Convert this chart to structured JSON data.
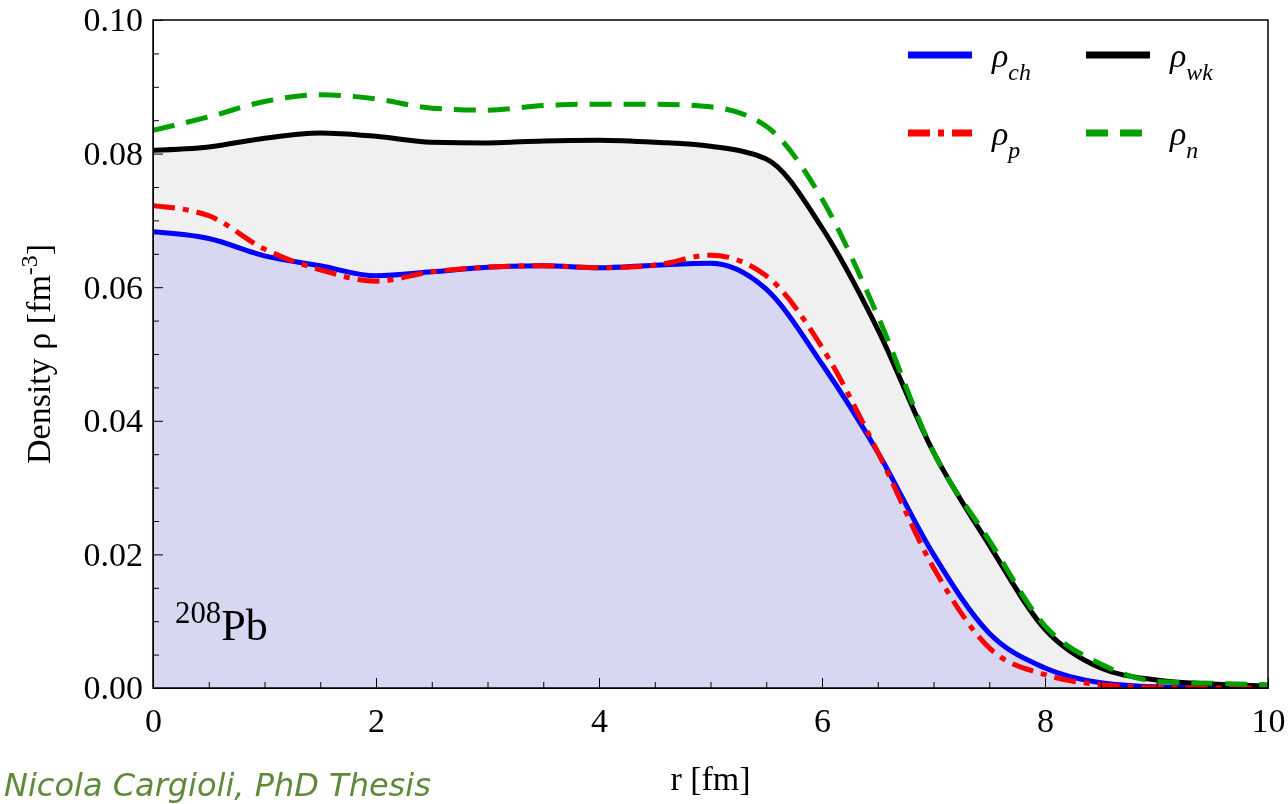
{
  "chart_data": {
    "type": "line",
    "xlabel": "r [fm]",
    "ylabel": "Density ρ [fm$^{-3}$]",
    "xlim": [
      0,
      10
    ],
    "ylim": [
      0,
      0.1
    ],
    "xticks": [
      {
        "value": 0,
        "label": "0"
      },
      {
        "value": 0.5,
        "label": null
      },
      {
        "value": 1,
        "label": null
      },
      {
        "value": 1.5,
        "label": null
      },
      {
        "value": 2,
        "label": "2"
      },
      {
        "value": 2.5,
        "label": null
      },
      {
        "value": 3,
        "label": null
      },
      {
        "value": 3.5,
        "label": null
      },
      {
        "value": 4,
        "label": "4"
      },
      {
        "value": 4.5,
        "label": null
      },
      {
        "value": 5,
        "label": null
      },
      {
        "value": 5.5,
        "label": null
      },
      {
        "value": 6,
        "label": "6"
      },
      {
        "value": 6.5,
        "label": null
      },
      {
        "value": 7,
        "label": null
      },
      {
        "value": 7.5,
        "label": null
      },
      {
        "value": 8,
        "label": "8"
      },
      {
        "value": 8.5,
        "label": null
      },
      {
        "value": 9,
        "label": null
      },
      {
        "value": 9.5,
        "label": null
      },
      {
        "value": 10,
        "label": "10"
      }
    ],
    "yticks": [
      {
        "value": 0,
        "label": "0.00"
      },
      {
        "value": 0.005,
        "label": null
      },
      {
        "value": 0.01,
        "label": null
      },
      {
        "value": 0.015,
        "label": null
      },
      {
        "value": 0.02,
        "label": "0.02"
      },
      {
        "value": 0.025,
        "label": null
      },
      {
        "value": 0.03,
        "label": null
      },
      {
        "value": 0.035,
        "label": null
      },
      {
        "value": 0.04,
        "label": "0.04"
      },
      {
        "value": 0.045,
        "label": null
      },
      {
        "value": 0.05,
        "label": null
      },
      {
        "value": 0.055,
        "label": null
      },
      {
        "value": 0.06,
        "label": "0.06"
      },
      {
        "value": 0.065,
        "label": null
      },
      {
        "value": 0.07,
        "label": null
      },
      {
        "value": 0.075,
        "label": null
      },
      {
        "value": 0.08,
        "label": "0.08"
      },
      {
        "value": 0.085,
        "label": null
      },
      {
        "value": 0.09,
        "label": null
      },
      {
        "value": 0.095,
        "label": null
      },
      {
        "value": 0.1,
        "label": "0.10"
      }
    ],
    "x": [
      0,
      0.5,
      1,
      1.5,
      2,
      2.5,
      3,
      3.5,
      4,
      4.5,
      5,
      5.5,
      6,
      6.5,
      7,
      7.5,
      8,
      8.5,
      9,
      9.5,
      10
    ],
    "legend": "top right",
    "grid": false,
    "series": [
      {
        "name": "ρ$_{ch}$",
        "type": "area",
        "color": "#0000ff",
        "line_style": "solid",
        "values": [
          0.0683,
          0.0673,
          0.0647,
          0.0632,
          0.0617,
          0.0623,
          0.063,
          0.0632,
          0.0629,
          0.0633,
          0.0636,
          0.0597,
          0.0485,
          0.0353,
          0.02,
          0.0082,
          0.003,
          0.0008,
          0.0002,
          0.0001,
          0
        ]
      },
      {
        "name": "ρ$_{wk}$",
        "type": "area",
        "color": "#000000",
        "line_style": "solid",
        "values": [
          0.0805,
          0.081,
          0.0823,
          0.0831,
          0.0826,
          0.0817,
          0.0816,
          0.0819,
          0.082,
          0.0817,
          0.0811,
          0.0792,
          0.0689,
          0.0537,
          0.0353,
          0.0214,
          0.0088,
          0.003,
          0.0012,
          0.0006,
          0.0003
        ]
      },
      {
        "name": "ρ$_{p}$",
        "color": "#ff0000",
        "line_style": "dashdot",
        "values": [
          0.0722,
          0.0707,
          0.0657,
          0.0626,
          0.0609,
          0.0623,
          0.063,
          0.0632,
          0.0629,
          0.0633,
          0.0648,
          0.0617,
          0.051,
          0.0353,
          0.018,
          0.006,
          0.002,
          0.0005,
          0.0001,
          0,
          0
        ]
      },
      {
        "name": "ρ$_{n}$",
        "color": "#00a000",
        "line_style": "dashed",
        "values": [
          0.0835,
          0.0855,
          0.0878,
          0.0888,
          0.0882,
          0.0868,
          0.0865,
          0.0872,
          0.0874,
          0.0874,
          0.087,
          0.0841,
          0.0732,
          0.0557,
          0.0353,
          0.0221,
          0.0093,
          0.0036,
          0.001,
          0.0007,
          0.0005
        ]
      }
    ],
    "annotations": [
      "$^{208}$Pb",
      "Nicola Cargioli, PhD Thesis"
    ]
  }
}
